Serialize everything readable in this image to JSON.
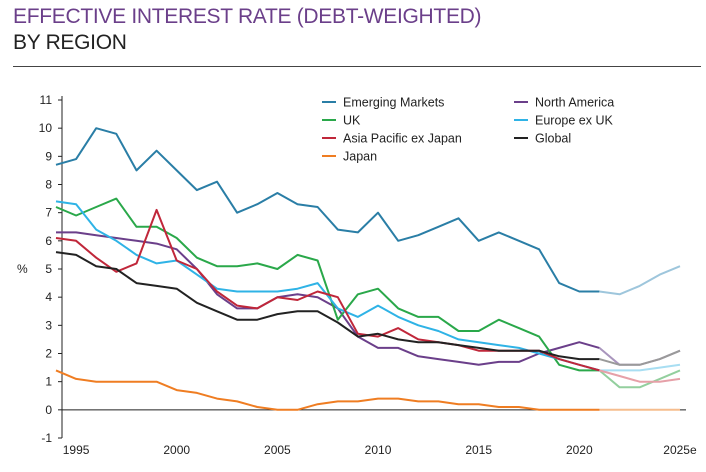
{
  "header": {
    "title_line1": "EFFECTIVE INTEREST RATE (DEBT-WEIGHTED)",
    "title_line2": "BY REGION"
  },
  "chart_data": {
    "type": "line",
    "title": "EFFECTIVE INTEREST RATE (DEBT-WEIGHTED) BY REGION",
    "ylabel": "%",
    "xlabel": "",
    "ylim": [
      -1,
      11
    ],
    "xlim": [
      1994.3,
      2025.3
    ],
    "y_ticks": [
      -1,
      0,
      1,
      2,
      3,
      4,
      5,
      6,
      7,
      8,
      9,
      10,
      11
    ],
    "x_ticks": [
      {
        "value": 1995,
        "label": "1995"
      },
      {
        "value": 2000,
        "label": "2000"
      },
      {
        "value": 2005,
        "label": "2005"
      },
      {
        "value": 2010,
        "label": "2010"
      },
      {
        "value": 2015,
        "label": "2015"
      },
      {
        "value": 2020,
        "label": "2020"
      },
      {
        "value": 2025,
        "label": "2025e"
      }
    ],
    "grid": false,
    "legend_position": "top-right",
    "x": [
      1994,
      1995,
      1996,
      1997,
      1998,
      1999,
      2000,
      2001,
      2002,
      2003,
      2004,
      2005,
      2006,
      2007,
      2008,
      2009,
      2010,
      2011,
      2012,
      2013,
      2014,
      2015,
      2016,
      2017,
      2018,
      2019,
      2020,
      2021,
      2022,
      2023,
      2024,
      2025
    ],
    "forecast_from": 2021,
    "series": [
      {
        "name": "Emerging Markets",
        "color": "#2a7ea6",
        "forecast_color": "#9ec6dc",
        "values": [
          8.7,
          8.9,
          10.0,
          9.8,
          8.5,
          9.2,
          8.5,
          7.8,
          8.1,
          7.0,
          7.3,
          7.7,
          7.3,
          7.2,
          6.4,
          6.3,
          7.0,
          6.0,
          6.2,
          6.5,
          6.8,
          6.0,
          6.3,
          6.0,
          5.7,
          4.5,
          4.2,
          4.2,
          4.1,
          4.4,
          4.8,
          5.1
        ]
      },
      {
        "name": "North America",
        "color": "#6b3f8a",
        "forecast_color": "#a995bd",
        "values": [
          6.3,
          6.3,
          6.2,
          6.1,
          6.0,
          5.9,
          5.7,
          5.0,
          4.1,
          3.6,
          3.6,
          4.0,
          4.1,
          4.0,
          3.6,
          2.6,
          2.2,
          2.2,
          1.9,
          1.8,
          1.7,
          1.6,
          1.7,
          1.7,
          2.0,
          2.2,
          2.4,
          2.2,
          1.6,
          1.6,
          1.8,
          2.1
        ]
      },
      {
        "name": "UK",
        "color": "#2aa84a",
        "forecast_color": "#93cf9e",
        "values": [
          7.2,
          6.9,
          7.2,
          7.5,
          6.5,
          6.5,
          6.1,
          5.4,
          5.1,
          5.1,
          5.2,
          5.0,
          5.5,
          5.3,
          3.2,
          4.1,
          4.3,
          3.6,
          3.3,
          3.3,
          2.8,
          2.8,
          3.2,
          2.9,
          2.6,
          1.6,
          1.4,
          1.4,
          0.8,
          0.8,
          1.1,
          1.4
        ]
      },
      {
        "name": "Europe ex UK",
        "color": "#2fb3e6",
        "forecast_color": "#a8def2",
        "values": [
          7.4,
          7.3,
          6.4,
          6.0,
          5.5,
          5.2,
          5.3,
          4.8,
          4.3,
          4.2,
          4.2,
          4.2,
          4.3,
          4.5,
          3.6,
          3.3,
          3.7,
          3.3,
          3.0,
          2.8,
          2.5,
          2.4,
          2.3,
          2.2,
          2.0,
          1.8,
          1.6,
          1.4,
          1.4,
          1.4,
          1.5,
          1.6
        ]
      },
      {
        "name": "Asia Pacific ex Japan",
        "color": "#c0273a",
        "forecast_color": "#e6a0a8",
        "values": [
          6.1,
          6.0,
          5.4,
          4.9,
          5.2,
          7.1,
          5.3,
          5.0,
          4.2,
          3.7,
          3.6,
          4.0,
          3.9,
          4.2,
          4.0,
          2.7,
          2.6,
          2.9,
          2.5,
          2.4,
          2.3,
          2.1,
          2.1,
          2.1,
          2.1,
          1.8,
          1.6,
          1.4,
          1.2,
          1.0,
          1.0,
          1.1
        ]
      },
      {
        "name": "Global",
        "color": "#222222",
        "forecast_color": "#9a9a9a",
        "values": [
          5.6,
          5.5,
          5.1,
          5.0,
          4.5,
          4.4,
          4.3,
          3.8,
          3.5,
          3.2,
          3.2,
          3.4,
          3.5,
          3.5,
          3.1,
          2.6,
          2.7,
          2.5,
          2.4,
          2.4,
          2.3,
          2.2,
          2.1,
          2.1,
          2.1,
          1.9,
          1.8,
          1.8,
          1.6,
          1.6,
          1.8,
          2.1
        ]
      },
      {
        "name": "Japan",
        "color": "#ef7d22",
        "forecast_color": "#f6bd8e",
        "values": [
          1.4,
          1.1,
          1.0,
          1.0,
          1.0,
          1.0,
          0.7,
          0.6,
          0.4,
          0.3,
          0.1,
          0.0,
          0.0,
          0.2,
          0.3,
          0.3,
          0.4,
          0.4,
          0.3,
          0.3,
          0.2,
          0.2,
          0.1,
          0.1,
          0.0,
          0.0,
          0.0,
          0.0,
          0.0,
          0.0,
          0.0,
          0.0
        ]
      }
    ],
    "legend": [
      {
        "name": "Emerging Markets"
      },
      {
        "name": "North America"
      },
      {
        "name": "UK"
      },
      {
        "name": "Europe ex UK"
      },
      {
        "name": "Asia Pacific ex Japan"
      },
      {
        "name": "Global"
      },
      {
        "name": "Japan"
      }
    ]
  }
}
